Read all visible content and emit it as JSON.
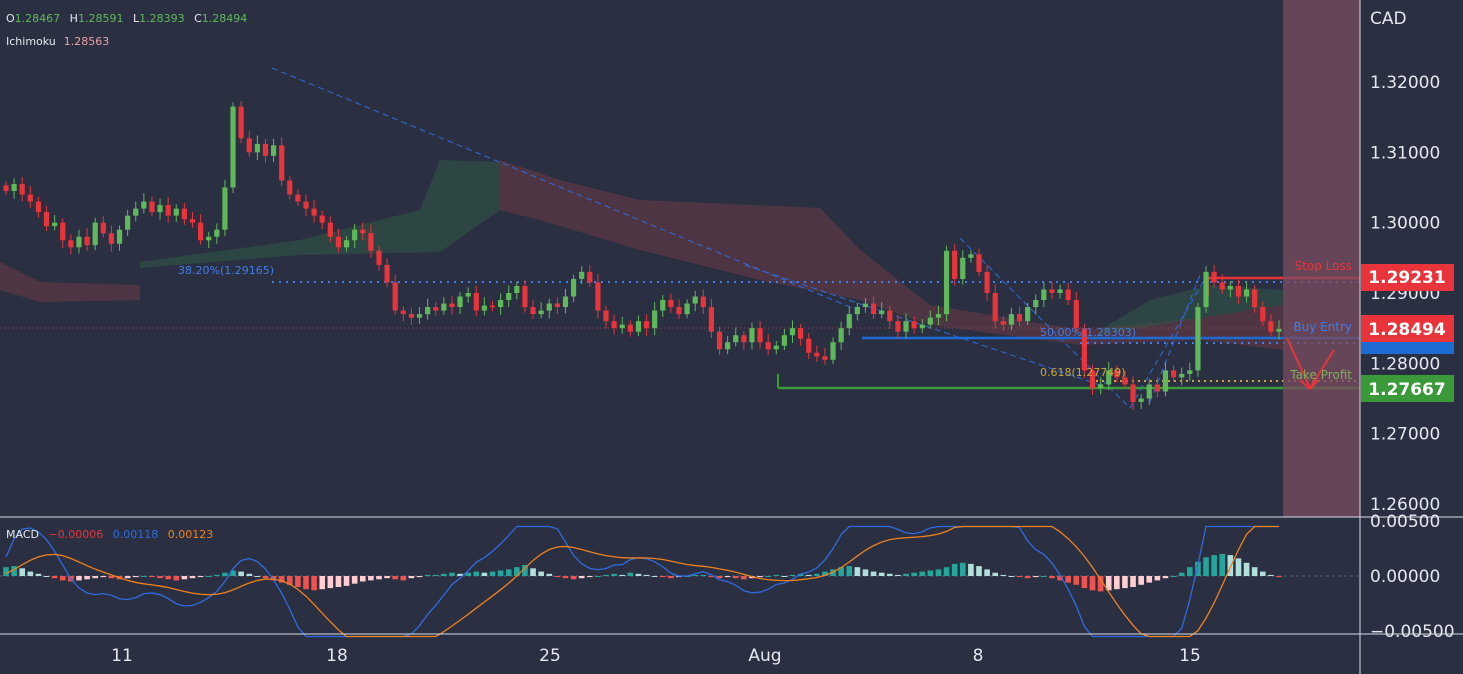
{
  "header": {
    "ohlc": [
      {
        "label": "O",
        "value": "1.28467"
      },
      {
        "label": "H",
        "value": "1.28591"
      },
      {
        "label": "L",
        "value": "1.28393"
      },
      {
        "label": "C",
        "value": "1.28494"
      }
    ],
    "ichimoku_label": "Ichimoku",
    "ichimoku_value": "1.28563",
    "macd_label": "MACD",
    "macd_values": [
      "−0.00006",
      "0.00118",
      "0.00123"
    ]
  },
  "price_axis": {
    "currency": "CAD",
    "ticks": [
      "1.32000",
      "1.31000",
      "1.30000",
      "1.29000",
      "1.28000",
      "1.27000",
      "1.26000"
    ],
    "tick_values": [
      1.32,
      1.31,
      1.3,
      1.29,
      1.28,
      1.27,
      1.26
    ],
    "obscured_tick": "1.28000"
  },
  "macd_axis": {
    "ticks": [
      "0.00500",
      "0.00000",
      "−0.00500"
    ],
    "tick_values": [
      0.005,
      0.0,
      -0.005
    ]
  },
  "time_axis": {
    "labels": [
      "11",
      "18",
      "25",
      "Aug",
      "8",
      "15"
    ]
  },
  "price_badges": {
    "stop_loss": "1.29231",
    "last": "1.28494",
    "take_profit": "1.27667"
  },
  "annotations": {
    "fib_382": "38.20%(1.29165)",
    "fib_500": "50.00%(1.28303)",
    "fib_618": "0.618(1.27749)",
    "stop_loss_label": "Stop Loss",
    "buy_entry_label": "Buy Entry",
    "take_profit_label": "Take Profit"
  },
  "colors": {
    "background": "#2a3042",
    "bull": "#5fb85a",
    "bear": "#e8343a",
    "stop_loss": "#e8343a",
    "entry": "#1f6bd4",
    "take_profit": "#3a9a3a",
    "macd_line": "#2f6be0",
    "signal_line": "#f0811a",
    "future_zone": "#7a4c5f"
  },
  "chart_data": [
    {
      "type": "candlestick",
      "title": "",
      "xlabel": "",
      "ylabel": "CAD",
      "ylim": [
        1.255,
        1.325
      ],
      "x": [
        "11",
        "18",
        "25",
        "Aug",
        "8",
        "15"
      ],
      "series": [
        {
          "name": "",
          "close_path": [
            1.3045,
            1.3055,
            1.304,
            1.303,
            1.3015,
            1.2995,
            1.3,
            1.2975,
            1.2965,
            1.298,
            1.2968,
            1.3,
            1.2985,
            1.297,
            1.299,
            1.301,
            1.302,
            1.303,
            1.3015,
            1.3025,
            1.301,
            1.302,
            1.3005,
            1.3,
            1.2975,
            1.298,
            1.299,
            1.305,
            1.3165,
            1.312,
            1.31,
            1.3112,
            1.3095,
            1.311,
            1.306,
            1.304,
            1.303,
            1.302,
            1.301,
            1.3,
            1.298,
            1.2965,
            1.2975,
            1.299,
            1.2985,
            1.296,
            1.294,
            1.2915,
            1.2875,
            1.287,
            1.2865,
            1.287,
            1.288,
            1.2875,
            1.2885,
            1.288,
            1.2895,
            1.29,
            1.2875,
            1.2882,
            1.288,
            1.289,
            1.29,
            1.291,
            1.288,
            1.287,
            1.2875,
            1.2885,
            1.288,
            1.2895,
            1.292,
            1.293,
            1.2915,
            1.2875,
            1.286,
            1.285,
            1.2855,
            1.2845,
            1.286,
            1.285,
            1.2875,
            1.289,
            1.288,
            1.287,
            1.2885,
            1.2895,
            1.288,
            1.2845,
            1.282,
            1.283,
            1.284,
            1.283,
            1.285,
            1.283,
            1.282,
            1.2825,
            1.284,
            1.285,
            1.2835,
            1.2815,
            1.281,
            1.2805,
            1.283,
            1.285,
            1.287,
            1.288,
            1.2885,
            1.287,
            1.2875,
            1.286,
            1.2845,
            1.286,
            1.285,
            1.2855,
            1.2865,
            1.287,
            1.296,
            1.292,
            1.295,
            1.2955,
            1.293,
            1.29,
            1.286,
            1.2855,
            1.287,
            1.286,
            1.288,
            1.289,
            1.2905,
            1.29,
            1.2905,
            1.289,
            1.285,
            1.279,
            1.2765,
            1.277,
            1.279,
            1.278,
            1.277,
            1.2745,
            1.275,
            1.277,
            1.276,
            1.279,
            1.278,
            1.2785,
            1.279,
            1.288,
            1.293,
            1.2915,
            1.2905,
            1.291,
            1.2895,
            1.2905,
            1.288,
            1.286,
            1.2845,
            1.2849
          ]
        }
      ],
      "levels": {
        "fib_382": 1.29165,
        "fib_500": 1.28303,
        "fib_618": 1.27749,
        "stop_loss": 1.29231,
        "buy_entry": 1.28494,
        "take_profit": 1.27667,
        "support_blue": 1.2833
      }
    },
    {
      "type": "histogram",
      "title": "MACD",
      "ylim": [
        -0.0065,
        0.0065
      ],
      "series": [
        {
          "name": "",
          "values": [
            0.0008,
            0.0009,
            0.0007,
            0.0004,
            0.0002,
            0.0,
            -0.0002,
            -0.0004,
            -0.0005,
            -0.0004,
            -0.0003,
            -0.0002,
            -0.0001,
            -0.0002,
            -0.0003,
            -0.0002,
            -0.0001,
            0.0,
            -0.0001,
            -0.0002,
            -0.0003,
            -0.0004,
            -0.0003,
            -0.0002,
            -0.0001,
            0.0,
            0.0001,
            0.0003,
            0.0005,
            0.0004,
            0.0002,
            0.0,
            -0.0002,
            -0.0004,
            -0.0006,
            -0.0008,
            -0.001,
            -0.0012,
            -0.0013,
            -0.0012,
            -0.0011,
            -0.001,
            -0.0009,
            -0.0007,
            -0.0005,
            -0.0004,
            -0.0003,
            -0.0002,
            -0.0003,
            -0.0004,
            -0.0002,
            -0.0001,
            0.0001,
            0.0001,
            0.0002,
            0.0003,
            0.0002,
            0.0003,
            0.0004,
            0.0003,
            0.0004,
            0.0005,
            0.0006,
            0.0008,
            0.001,
            0.0007,
            0.0004,
            0.0002,
            -0.0001,
            -0.0002,
            -0.0003,
            -0.0002,
            -0.0001,
            0.0,
            0.0001,
            0.0002,
            0.0001,
            0.0003,
            0.0002,
            0.0001,
            0.0,
            -0.0001,
            -0.0002,
            -0.0001,
            0.0,
            0.0001,
            0.0001,
            -0.0001,
            -0.0002,
            -0.0001,
            -0.0002,
            -0.0003,
            -0.0002,
            -0.0001,
            0.0,
            0.0001,
            0.0,
            0.0001,
            0.0002,
            0.0001,
            0.0002,
            0.0004,
            0.0006,
            0.0008,
            0.0009,
            0.0008,
            0.0006,
            0.0004,
            0.0003,
            0.0002,
            0.0001,
            0.0002,
            0.0003,
            0.0004,
            0.0005,
            0.0006,
            0.0008,
            0.0011,
            0.0012,
            0.0011,
            0.0009,
            0.0006,
            0.0003,
            0.0001,
            0.0,
            -0.0001,
            -0.0002,
            -0.0001,
            0.0,
            -0.0002,
            -0.0004,
            -0.0006,
            -0.0008,
            -0.0011,
            -0.0013,
            -0.0014,
            -0.0013,
            -0.0012,
            -0.0011,
            -0.001,
            -0.0008,
            -0.0006,
            -0.0004,
            -0.0002,
            0.0,
            0.0003,
            0.0008,
            0.0013,
            0.0017,
            0.0019,
            0.002,
            0.0019,
            0.0016,
            0.0012,
            0.0008,
            0.0004,
            0.0001,
            -0.0001
          ]
        }
      ]
    }
  ]
}
